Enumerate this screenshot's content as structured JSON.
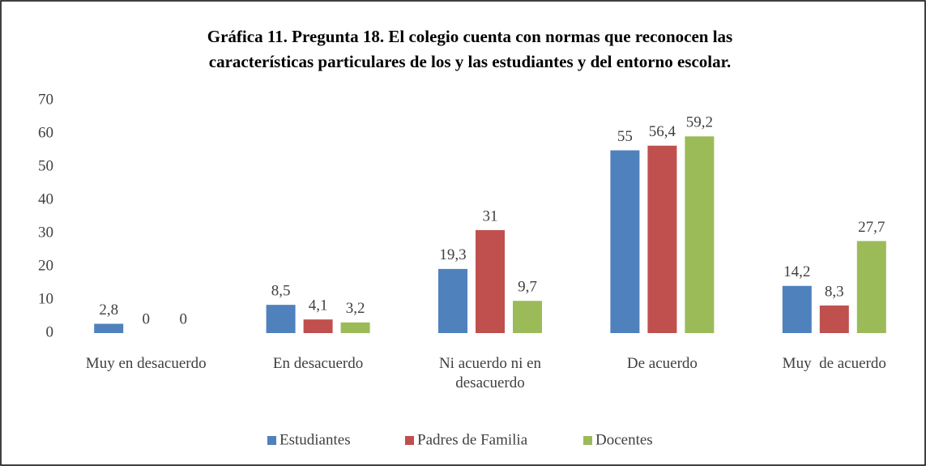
{
  "chart_data": {
    "type": "bar",
    "title": [
      "Gráfica 11. Pregunta 18. El colegio cuenta con normas que reconocen las",
      "características particulares de los y las estudiantes y del entorno escolar."
    ],
    "categories": [
      "Muy en desacuerdo",
      "En desacuerdo",
      "Ni acuerdo ni en desacuerdo",
      "De acuerdo",
      "Muy  de acuerdo"
    ],
    "series": [
      {
        "name": "Estudiantes",
        "color": "#4f81bd",
        "values": [
          2.8,
          8.5,
          19.3,
          55,
          14.2
        ],
        "value_labels": [
          "2,8",
          "8,5",
          "19,3",
          "55",
          "14,2"
        ]
      },
      {
        "name": "Padres de Familia",
        "color": "#c0504d",
        "values": [
          0,
          4.1,
          31,
          56.4,
          8.3
        ],
        "value_labels": [
          "0",
          "4,1",
          "31",
          "56,4",
          "8,3"
        ]
      },
      {
        "name": "Docentes",
        "color": "#9bbb59",
        "values": [
          0,
          3.2,
          9.7,
          59.2,
          27.7
        ],
        "value_labels": [
          "0",
          "3,2",
          "9,7",
          "59,2",
          "27,7"
        ]
      }
    ],
    "ylim": [
      0,
      70
    ],
    "yticks": [
      0,
      10,
      20,
      30,
      40,
      50,
      60,
      70
    ],
    "grid": false,
    "legend": "bottom"
  }
}
